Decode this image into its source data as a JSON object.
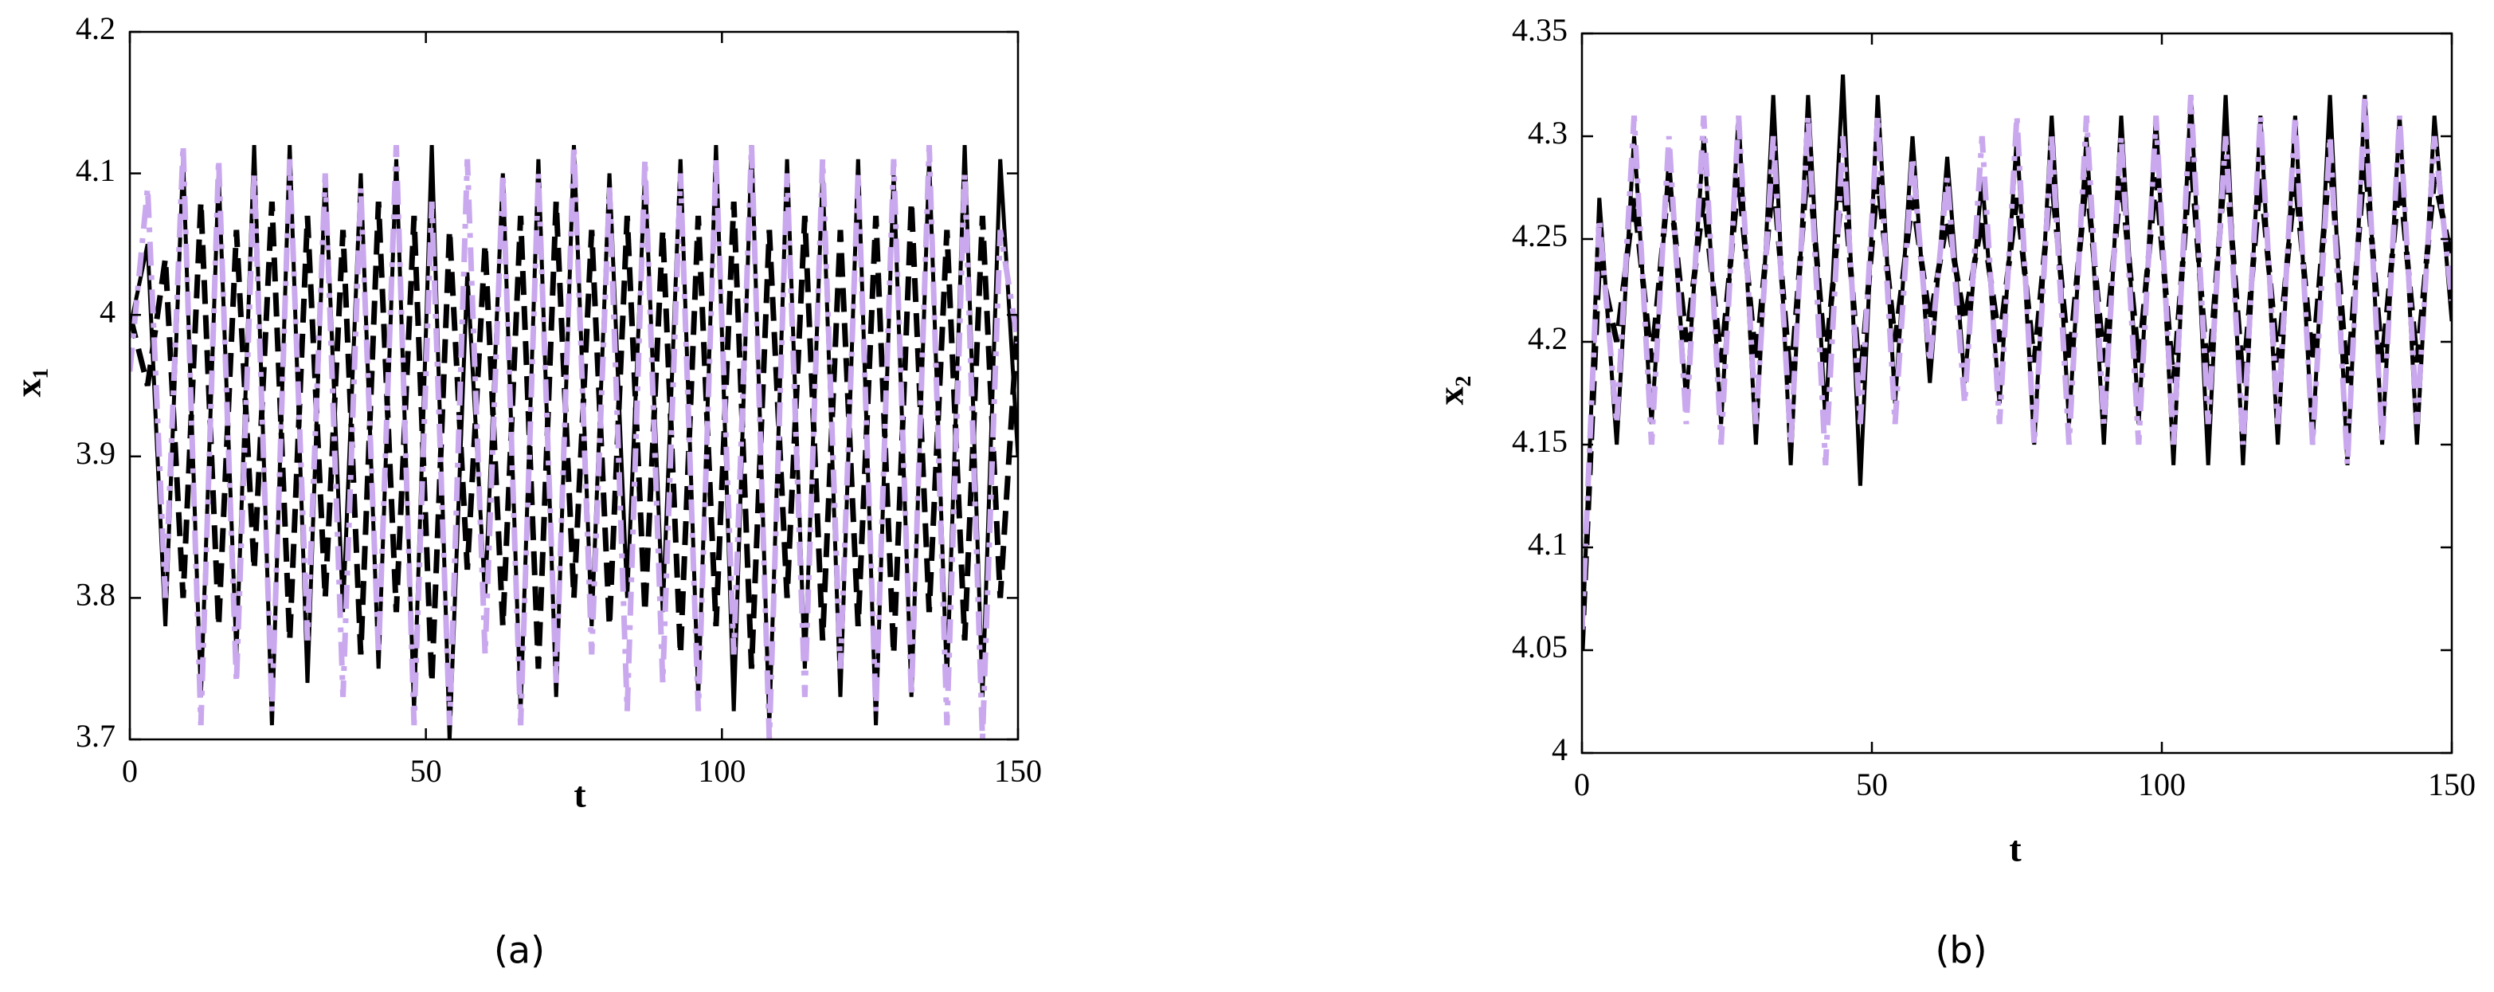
{
  "chart_data": [
    {
      "type": "line",
      "caption": "(a)",
      "x_label": "t",
      "y_label": "x₁",
      "x": [
        0,
        3,
        6,
        9,
        12,
        15,
        18,
        21,
        24,
        27,
        30,
        33,
        36,
        39,
        42,
        45,
        48,
        51,
        54,
        57,
        60,
        63,
        66,
        69,
        72,
        75,
        78,
        81,
        84,
        87,
        90,
        93,
        96,
        99,
        102,
        105,
        108,
        111,
        114,
        117,
        120,
        123,
        126,
        129,
        132,
        135,
        138,
        141,
        144,
        147,
        150
      ],
      "series": [
        {
          "color": "#000000",
          "dash": "solid",
          "values": [
            3.99,
            4.05,
            3.78,
            4.11,
            3.73,
            4.1,
            3.76,
            4.12,
            3.71,
            4.12,
            3.74,
            4.1,
            3.79,
            4.1,
            3.75,
            4.11,
            3.72,
            4.12,
            3.7,
            4.03,
            3.8,
            4.1,
            3.72,
            4.11,
            3.73,
            4.12,
            3.78,
            4.1,
            3.8,
            4.1,
            3.79,
            4.11,
            3.73,
            4.12,
            3.72,
            4.12,
            3.71,
            4.11,
            3.75,
            4.1,
            3.73,
            4.11,
            3.71,
            4.1,
            3.73,
            4.11,
            3.74,
            4.12,
            3.73,
            4.11,
            3.9
          ]
        },
        {
          "color": "#000000",
          "dash": "dashed",
          "values": [
            4.0,
            3.95,
            4.04,
            3.8,
            4.08,
            3.78,
            4.06,
            3.82,
            4.08,
            3.77,
            4.07,
            3.8,
            4.06,
            3.76,
            4.08,
            3.79,
            4.07,
            3.74,
            4.06,
            3.82,
            4.05,
            3.78,
            4.07,
            3.75,
            4.08,
            3.8,
            4.06,
            3.78,
            4.07,
            3.79,
            4.06,
            3.76,
            4.07,
            3.78,
            4.08,
            3.75,
            4.06,
            3.8,
            4.07,
            3.77,
            4.06,
            3.78,
            4.07,
            3.76,
            4.08,
            3.79,
            4.06,
            3.77,
            4.07,
            3.8,
            4.0
          ]
        },
        {
          "color": "#c9a8ee",
          "dash": "dashdot",
          "values": [
            3.96,
            4.09,
            3.8,
            4.12,
            3.71,
            4.11,
            3.74,
            4.1,
            3.72,
            4.11,
            3.77,
            4.1,
            3.73,
            4.09,
            3.76,
            4.12,
            3.71,
            4.08,
            3.71,
            4.11,
            3.76,
            4.1,
            3.71,
            4.1,
            3.74,
            4.12,
            3.76,
            4.09,
            3.72,
            4.11,
            3.74,
            4.1,
            3.72,
            4.11,
            3.76,
            4.12,
            3.7,
            4.1,
            3.73,
            4.11,
            3.75,
            4.1,
            3.72,
            4.11,
            3.73,
            4.12,
            3.71,
            4.1,
            3.7,
            4.06,
            3.98
          ]
        }
      ],
      "xlim": [
        0,
        150
      ],
      "xticks": [
        0,
        50,
        100,
        150
      ],
      "ylim": [
        3.7,
        4.2
      ],
      "yticks": [
        3.7,
        3.8,
        3.9,
        4,
        4.1,
        4.2
      ]
    },
    {
      "type": "line",
      "caption": "(b)",
      "x_label": "t",
      "y_label": "x₂",
      "x": [
        0,
        3,
        6,
        9,
        12,
        15,
        18,
        21,
        24,
        27,
        30,
        33,
        36,
        39,
        42,
        45,
        48,
        51,
        54,
        57,
        60,
        63,
        66,
        69,
        72,
        75,
        78,
        81,
        84,
        87,
        90,
        93,
        96,
        99,
        102,
        105,
        108,
        111,
        114,
        117,
        120,
        123,
        126,
        129,
        132,
        135,
        138,
        141,
        144,
        147,
        150
      ],
      "series": [
        {
          "color": "#000000",
          "dash": "solid",
          "values": [
            4.05,
            4.27,
            4.15,
            4.3,
            4.16,
            4.29,
            4.17,
            4.3,
            4.16,
            4.31,
            4.15,
            4.32,
            4.14,
            4.32,
            4.16,
            4.33,
            4.13,
            4.32,
            4.17,
            4.3,
            4.18,
            4.29,
            4.18,
            4.28,
            4.17,
            4.3,
            4.15,
            4.31,
            4.16,
            4.3,
            4.15,
            4.31,
            4.16,
            4.31,
            4.14,
            4.32,
            4.14,
            4.32,
            4.14,
            4.31,
            4.15,
            4.31,
            4.15,
            4.32,
            4.14,
            4.32,
            4.15,
            4.31,
            4.15,
            4.31,
            4.21
          ]
        },
        {
          "color": "#000000",
          "dash": "dashed",
          "values": [
            4.05,
            4.24,
            4.2,
            4.27,
            4.19,
            4.28,
            4.2,
            4.27,
            4.19,
            4.28,
            4.19,
            4.28,
            4.18,
            4.29,
            4.19,
            4.28,
            4.18,
            4.28,
            4.2,
            4.27,
            4.21,
            4.26,
            4.21,
            4.26,
            4.2,
            4.27,
            4.19,
            4.28,
            4.19,
            4.28,
            4.19,
            4.28,
            4.19,
            4.28,
            4.18,
            4.29,
            4.18,
            4.29,
            4.18,
            4.28,
            4.19,
            4.28,
            4.19,
            4.29,
            4.18,
            4.29,
            4.19,
            4.28,
            4.19,
            4.28,
            4.24
          ]
        },
        {
          "color": "#c9a8ee",
          "dash": "dashdot",
          "values": [
            4.06,
            4.26,
            4.16,
            4.31,
            4.15,
            4.3,
            4.16,
            4.31,
            4.15,
            4.31,
            4.16,
            4.3,
            4.15,
            4.31,
            4.14,
            4.3,
            4.16,
            4.31,
            4.16,
            4.29,
            4.19,
            4.28,
            4.17,
            4.3,
            4.16,
            4.31,
            4.15,
            4.3,
            4.15,
            4.31,
            4.16,
            4.3,
            4.15,
            4.31,
            4.15,
            4.32,
            4.16,
            4.3,
            4.15,
            4.31,
            4.16,
            4.31,
            4.15,
            4.3,
            4.14,
            4.32,
            4.15,
            4.31,
            4.16,
            4.3,
            4.22
          ]
        }
      ],
      "xlim": [
        0,
        150
      ],
      "xticks": [
        0,
        50,
        100,
        150
      ],
      "ylim": [
        4,
        4.35
      ],
      "yticks": [
        4,
        4.05,
        4.1,
        4.15,
        4.2,
        4.25,
        4.3,
        4.35
      ]
    }
  ]
}
